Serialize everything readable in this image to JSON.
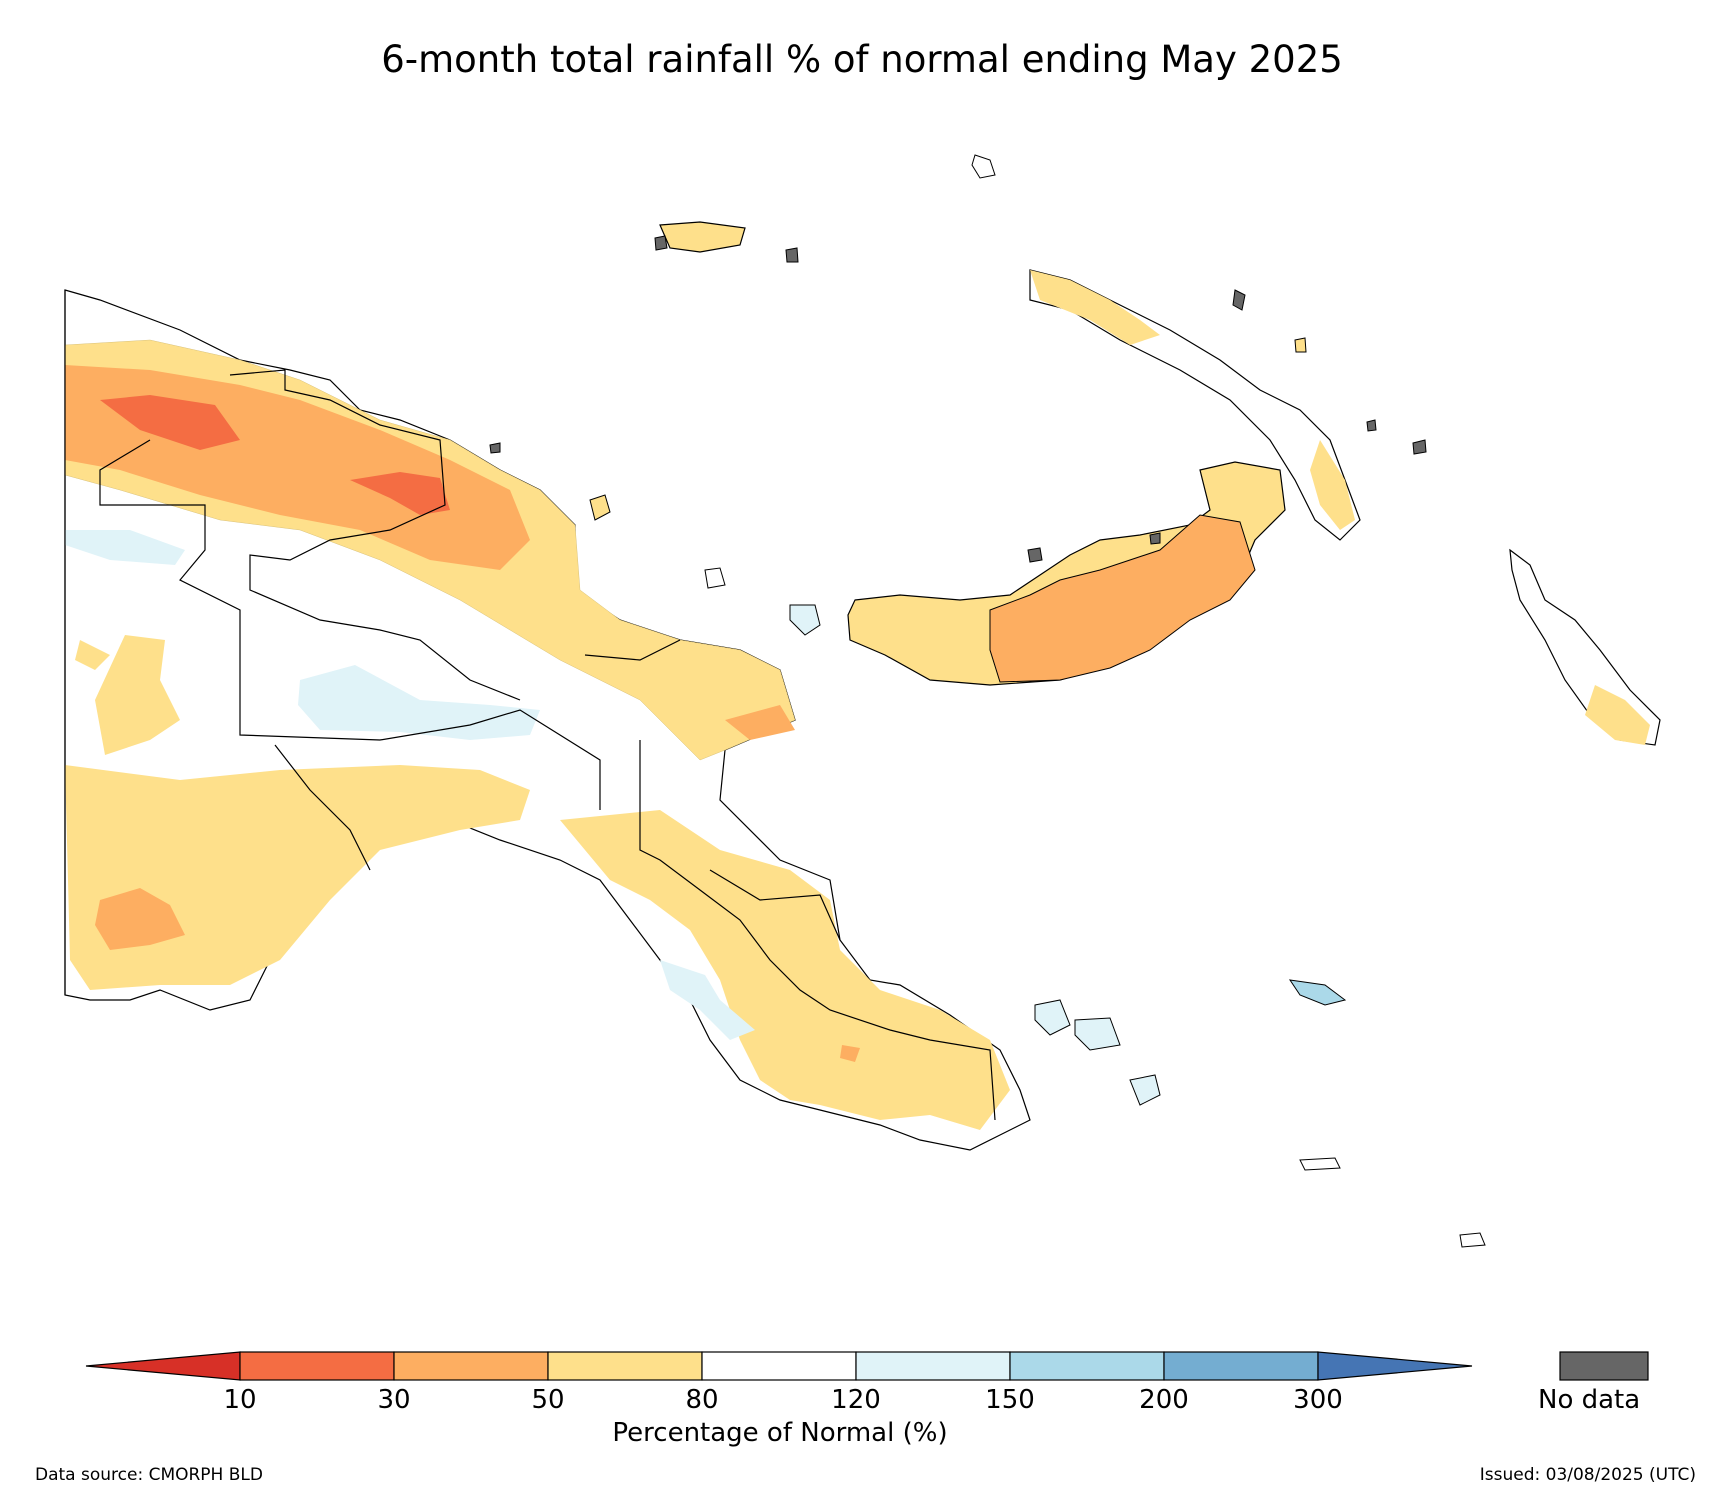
{
  "title": "6-month total rainfall % of normal ending May 2025",
  "colorbar": {
    "label": "Percentage of Normal (%)",
    "ticks": [
      "10",
      "30",
      "50",
      "80",
      "120",
      "150",
      "200",
      "300"
    ],
    "colors": [
      "#d73027",
      "#f46d43",
      "#fdae61",
      "#fee08b",
      "#ffffff",
      "#e0f3f8",
      "#abd9e9",
      "#74add1",
      "#4575b4"
    ],
    "nodata_label": "No data",
    "nodata_color": "#666666"
  },
  "source": "Data source: CMORPH BLD",
  "issued": "Issued: 03/08/2025 (UTC)"
}
